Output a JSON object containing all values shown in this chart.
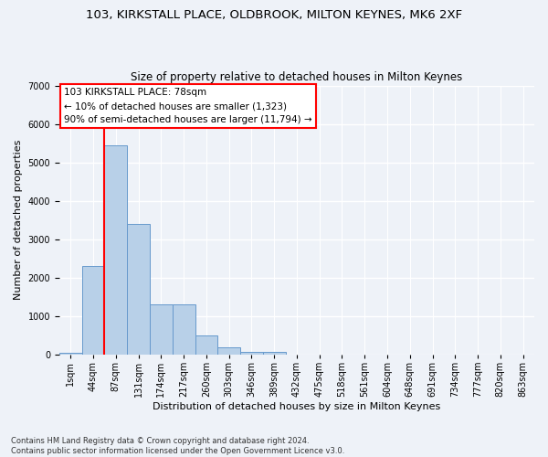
{
  "title1": "103, KIRKSTALL PLACE, OLDBROOK, MILTON KEYNES, MK6 2XF",
  "title2": "Size of property relative to detached houses in Milton Keynes",
  "xlabel": "Distribution of detached houses by size in Milton Keynes",
  "ylabel": "Number of detached properties",
  "footer": "Contains HM Land Registry data © Crown copyright and database right 2024.\nContains public sector information licensed under the Open Government Licence v3.0.",
  "categories": [
    "1sqm",
    "44sqm",
    "87sqm",
    "131sqm",
    "174sqm",
    "217sqm",
    "260sqm",
    "303sqm",
    "346sqm",
    "389sqm",
    "432sqm",
    "475sqm",
    "518sqm",
    "561sqm",
    "604sqm",
    "648sqm",
    "691sqm",
    "734sqm",
    "777sqm",
    "820sqm",
    "863sqm"
  ],
  "values": [
    50,
    2300,
    5450,
    3400,
    1300,
    1300,
    500,
    200,
    80,
    70,
    0,
    0,
    0,
    0,
    0,
    0,
    0,
    0,
    0,
    0,
    0
  ],
  "bar_color": "#b8d0e8",
  "bar_edge_color": "#6699cc",
  "vline_color": "red",
  "vline_x": 1.5,
  "annotation_text": "103 KIRKSTALL PLACE: 78sqm\n← 10% of detached houses are smaller (1,323)\n90% of semi-detached houses are larger (11,794) →",
  "annotation_box_color": "white",
  "annotation_box_edge_color": "red",
  "ylim": [
    0,
    7000
  ],
  "yticks": [
    0,
    1000,
    2000,
    3000,
    4000,
    5000,
    6000,
    7000
  ],
  "bg_color": "#eef2f8",
  "grid_color": "white",
  "title1_fontsize": 9.5,
  "title2_fontsize": 8.5,
  "xlabel_fontsize": 8,
  "ylabel_fontsize": 8,
  "annot_fontsize": 7.5,
  "tick_fontsize": 7
}
